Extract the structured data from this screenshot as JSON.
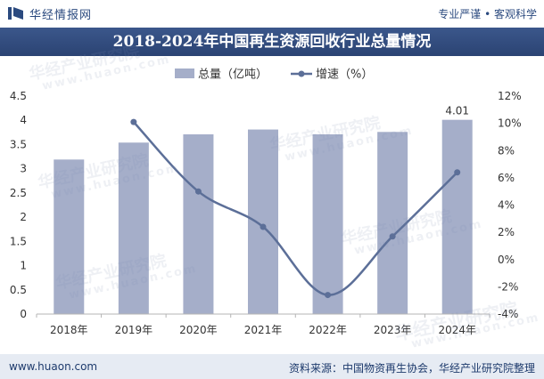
{
  "header": {
    "brand": "华经情报网",
    "slogan": "专业严谨 • 客观科学",
    "logo_icon": "bar-chart-logo-icon"
  },
  "colors": {
    "brand": "#2b4a7f",
    "bar": "#a5aec9",
    "line": "#5c6f98",
    "footer_bg": "#e6ebf3"
  },
  "chart_data": {
    "type": "bar",
    "title": "2018-2024年中国再生资源回收行业总量情况",
    "categories": [
      "2018年",
      "2019年",
      "2020年",
      "2021年",
      "2022年",
      "2023年",
      "2024年"
    ],
    "series": [
      {
        "name": "总量（亿吨）",
        "type": "bar",
        "axis": "left",
        "values": [
          3.19,
          3.54,
          3.71,
          3.81,
          3.71,
          3.76,
          4.01
        ]
      },
      {
        "name": "增速（%）",
        "type": "line",
        "axis": "right",
        "values": [
          null,
          10.1,
          5.0,
          2.4,
          -2.6,
          1.7,
          6.4
        ]
      }
    ],
    "ylim": [
      0,
      4.5
    ],
    "y_ticks": [
      "0",
      "0.5",
      "1",
      "1.5",
      "2",
      "2.5",
      "3",
      "3.5",
      "4",
      "4.5"
    ],
    "y2lim": [
      -4,
      12
    ],
    "y2_ticks": [
      "-4%",
      "-2%",
      "0%",
      "2%",
      "4%",
      "6%",
      "8%",
      "10%",
      "12%"
    ],
    "data_labels": [
      {
        "category": "2024年",
        "series": "总量（亿吨）",
        "text": "4.01"
      }
    ],
    "grid": false,
    "legend_position": "top-center"
  },
  "watermark": {
    "name": "华经产业研究院",
    "url": "www.huaon.com"
  },
  "footer": {
    "website": "www.huaon.com",
    "source": "资料来源：中国物资再生协会，华经产业研究院整理"
  }
}
